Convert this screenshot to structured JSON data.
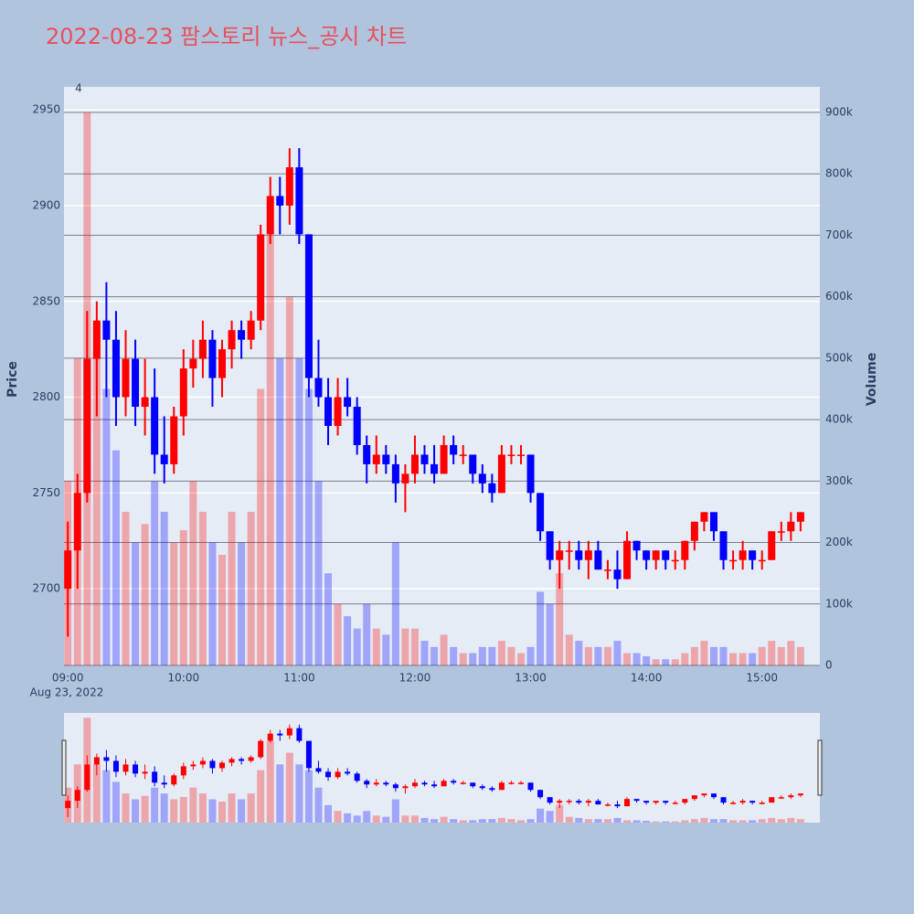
{
  "chart_data": {
    "type": "candlestick",
    "title": "2022-08-23 팜스토리 뉴스_공시 차트",
    "y_label": "Price",
    "y2_label": "Volume",
    "x_sublabel": "Aug 23, 2022",
    "annotation": "4",
    "up_color": "#ff0000",
    "down_color": "#0000ff",
    "x": [
      "09:00",
      "09:05",
      "09:10",
      "09:15",
      "09:20",
      "09:25",
      "09:30",
      "09:35",
      "09:40",
      "09:45",
      "09:50",
      "09:55",
      "10:00",
      "10:05",
      "10:10",
      "10:15",
      "10:20",
      "10:25",
      "10:30",
      "10:35",
      "10:40",
      "10:45",
      "10:50",
      "10:55",
      "11:00",
      "11:05",
      "11:10",
      "11:15",
      "11:20",
      "11:25",
      "11:30",
      "11:35",
      "11:40",
      "11:45",
      "11:50",
      "11:55",
      "12:00",
      "12:05",
      "12:10",
      "12:15",
      "12:20",
      "12:25",
      "12:30",
      "12:35",
      "12:40",
      "12:45",
      "12:50",
      "12:55",
      "13:00",
      "13:05",
      "13:10",
      "13:15",
      "13:20",
      "13:25",
      "13:30",
      "13:35",
      "13:40",
      "13:45",
      "13:50",
      "13:55",
      "14:00",
      "14:05",
      "14:10",
      "14:15",
      "14:20",
      "14:25",
      "14:30",
      "14:35",
      "14:40",
      "14:45",
      "14:50",
      "14:55",
      "15:00",
      "15:05",
      "15:10",
      "15:15",
      "15:20"
    ],
    "open": [
      2700,
      2720,
      2750,
      2820,
      2840,
      2830,
      2800,
      2820,
      2795,
      2800,
      2770,
      2765,
      2790,
      2815,
      2820,
      2830,
      2810,
      2825,
      2835,
      2830,
      2840,
      2885,
      2905,
      2900,
      2920,
      2885,
      2810,
      2800,
      2785,
      2800,
      2795,
      2775,
      2765,
      2770,
      2765,
      2755,
      2760,
      2770,
      2765,
      2760,
      2775,
      2770,
      2770,
      2760,
      2755,
      2750,
      2770,
      2770,
      2770,
      2750,
      2730,
      2715,
      2720,
      2720,
      2715,
      2720,
      2710,
      2710,
      2705,
      2725,
      2720,
      2715,
      2720,
      2715,
      2715,
      2725,
      2735,
      2740,
      2730,
      2715,
      2715,
      2720,
      2715,
      2715,
      2730,
      2730,
      2735
    ],
    "high": [
      2735,
      2760,
      2845,
      2850,
      2860,
      2845,
      2835,
      2830,
      2820,
      2815,
      2790,
      2795,
      2825,
      2830,
      2840,
      2835,
      2830,
      2840,
      2840,
      2845,
      2890,
      2915,
      2915,
      2930,
      2930,
      2885,
      2830,
      2810,
      2810,
      2810,
      2800,
      2780,
      2780,
      2775,
      2770,
      2765,
      2780,
      2775,
      2775,
      2780,
      2780,
      2775,
      2770,
      2765,
      2760,
      2775,
      2775,
      2775,
      2770,
      2750,
      2730,
      2725,
      2725,
      2725,
      2725,
      2725,
      2715,
      2720,
      2730,
      2725,
      2720,
      2720,
      2720,
      2720,
      2725,
      2735,
      2740,
      2740,
      2730,
      2720,
      2725,
      2720,
      2720,
      2730,
      2735,
      2740,
      2740
    ],
    "low": [
      2675,
      2700,
      2745,
      2790,
      2800,
      2785,
      2790,
      2785,
      2780,
      2760,
      2755,
      2760,
      2780,
      2805,
      2810,
      2795,
      2800,
      2815,
      2820,
      2825,
      2835,
      2880,
      2885,
      2890,
      2880,
      2800,
      2795,
      2775,
      2780,
      2790,
      2770,
      2755,
      2760,
      2760,
      2745,
      2740,
      2755,
      2760,
      2755,
      2760,
      2765,
      2765,
      2755,
      2750,
      2745,
      2750,
      2765,
      2765,
      2745,
      2725,
      2710,
      2700,
      2710,
      2710,
      2705,
      2710,
      2705,
      2700,
      2705,
      2715,
      2710,
      2710,
      2710,
      2710,
      2710,
      2720,
      2730,
      2725,
      2710,
      2710,
      2710,
      2710,
      2710,
      2715,
      2725,
      2725,
      2730
    ],
    "close": [
      2720,
      2750,
      2820,
      2840,
      2830,
      2800,
      2820,
      2795,
      2800,
      2770,
      2765,
      2790,
      2815,
      2820,
      2830,
      2810,
      2825,
      2835,
      2830,
      2840,
      2885,
      2905,
      2900,
      2920,
      2885,
      2810,
      2800,
      2785,
      2800,
      2795,
      2775,
      2765,
      2770,
      2765,
      2755,
      2760,
      2770,
      2765,
      2760,
      2775,
      2770,
      2770,
      2760,
      2755,
      2750,
      2770,
      2770,
      2770,
      2750,
      2730,
      2715,
      2720,
      2720,
      2715,
      2720,
      2710,
      2710,
      2705,
      2725,
      2720,
      2715,
      2720,
      2715,
      2715,
      2725,
      2735,
      2740,
      2730,
      2715,
      2715,
      2720,
      2715,
      2715,
      2730,
      2730,
      2735,
      2740
    ],
    "volume": [
      300000,
      500000,
      900000,
      500000,
      450000,
      350000,
      250000,
      200000,
      230000,
      300000,
      250000,
      200000,
      220000,
      300000,
      250000,
      200000,
      180000,
      250000,
      200000,
      250000,
      450000,
      700000,
      500000,
      600000,
      500000,
      450000,
      300000,
      150000,
      100000,
      80000,
      60000,
      100000,
      60000,
      50000,
      200000,
      60000,
      60000,
      40000,
      30000,
      50000,
      30000,
      20000,
      20000,
      30000,
      30000,
      40000,
      30000,
      20000,
      30000,
      120000,
      100000,
      150000,
      50000,
      40000,
      30000,
      30000,
      30000,
      40000,
      20000,
      20000,
      15000,
      10000,
      10000,
      10000,
      20000,
      30000,
      40000,
      30000,
      30000,
      20000,
      20000,
      20000,
      30000,
      40000,
      30000,
      40000,
      30000
    ],
    "xlim": [
      "08:58",
      "15:30"
    ],
    "xticks": [
      "09:00",
      "10:00",
      "11:00",
      "12:00",
      "13:00",
      "14:00",
      "15:00"
    ],
    "ylim": [
      2660,
      2962
    ],
    "yticks": [
      2700,
      2750,
      2800,
      2850,
      2900,
      2950
    ],
    "y2lim": [
      0,
      941600
    ],
    "y2ticks": [
      0,
      {
        "value": 100000,
        "label": "100k"
      },
      {
        "value": 200000,
        "label": "200k"
      },
      {
        "value": 300000,
        "label": "300k"
      },
      {
        "value": 400000,
        "label": "400k"
      },
      {
        "value": 500000,
        "label": "500k"
      },
      {
        "value": 600000,
        "label": "600k"
      },
      {
        "value": 700000,
        "label": "700k"
      },
      {
        "value": 800000,
        "label": "800k"
      },
      {
        "value": 900000,
        "label": "900k"
      }
    ]
  }
}
